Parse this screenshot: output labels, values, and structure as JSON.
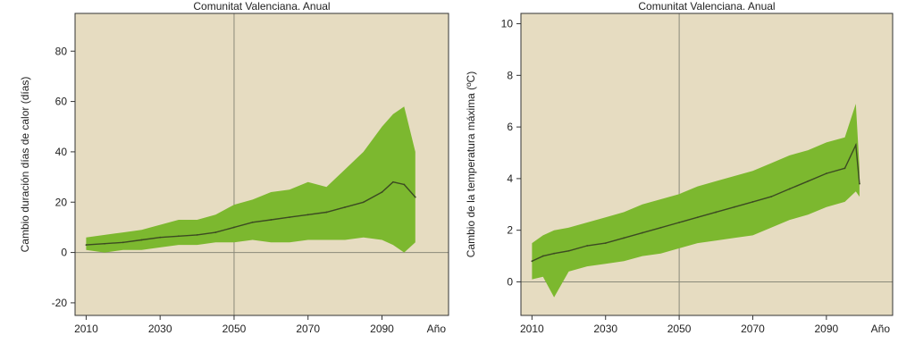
{
  "chart_data": [
    {
      "type": "area",
      "title": "Comunitat Valenciana. Anual",
      "xlabel": "Año",
      "ylabel": "Cambio duración días de calor (días)",
      "xlim": [
        2007,
        2108
      ],
      "ylim": [
        -25,
        95
      ],
      "xticks": [
        2010,
        2030,
        2050,
        2070,
        2090
      ],
      "yticks": [
        -20,
        0,
        20,
        40,
        60,
        80
      ],
      "reference_lines": {
        "x": 2050,
        "y": 0
      },
      "grid": false,
      "colors": {
        "background": "#e6dcc1",
        "band": "#7cb82f",
        "line": "#3c4a22",
        "refline": "#8a8a7a"
      },
      "series": [
        {
          "x": [
            2010,
            2015,
            2020,
            2025,
            2030,
            2035,
            2040,
            2045,
            2050,
            2055,
            2060,
            2065,
            2070,
            2075,
            2080,
            2085,
            2090,
            2093,
            2096,
            2099
          ],
          "values": [
            3,
            3.5,
            4,
            5,
            6,
            6.5,
            7,
            8,
            10,
            12,
            13,
            14,
            15,
            16,
            18,
            20,
            24,
            28,
            27,
            22
          ],
          "lower": [
            1,
            0,
            1,
            1,
            2,
            3,
            3,
            4,
            4,
            5,
            4,
            4,
            5,
            5,
            5,
            6,
            5,
            3,
            0,
            4
          ],
          "upper": [
            6,
            7,
            8,
            9,
            11,
            13,
            13,
            15,
            19,
            21,
            24,
            25,
            28,
            26,
            33,
            40,
            50,
            55,
            58,
            40
          ]
        }
      ]
    },
    {
      "type": "area",
      "title": "Comunitat Valenciana. Anual",
      "xlabel": "Año",
      "ylabel": "Cambio de la temperatura máxima (ºC)",
      "xlim": [
        2007,
        2108
      ],
      "ylim": [
        -1.3,
        10.4
      ],
      "xticks": [
        2010,
        2030,
        2050,
        2070,
        2090
      ],
      "yticks": [
        0,
        2,
        4,
        6,
        8,
        10
      ],
      "reference_lines": {
        "x": 2050,
        "y": 0
      },
      "grid": false,
      "colors": {
        "background": "#e6dcc1",
        "band": "#7cb82f",
        "line": "#3c4a22",
        "refline": "#8a8a7a"
      },
      "series": [
        {
          "x": [
            2010,
            2013,
            2016,
            2020,
            2025,
            2030,
            2035,
            2040,
            2045,
            2050,
            2055,
            2060,
            2065,
            2070,
            2075,
            2080,
            2085,
            2090,
            2095,
            2098,
            2099
          ],
          "values": [
            0.8,
            1.0,
            1.1,
            1.2,
            1.4,
            1.5,
            1.7,
            1.9,
            2.1,
            2.3,
            2.5,
            2.7,
            2.9,
            3.1,
            3.3,
            3.6,
            3.9,
            4.2,
            4.4,
            5.3,
            3.8
          ],
          "lower": [
            0.1,
            0.2,
            -0.6,
            0.4,
            0.6,
            0.7,
            0.8,
            1.0,
            1.1,
            1.3,
            1.5,
            1.6,
            1.7,
            1.8,
            2.1,
            2.4,
            2.6,
            2.9,
            3.1,
            3.5,
            3.3
          ],
          "upper": [
            1.5,
            1.8,
            2.0,
            2.1,
            2.3,
            2.5,
            2.7,
            3.0,
            3.2,
            3.4,
            3.7,
            3.9,
            4.1,
            4.3,
            4.6,
            4.9,
            5.1,
            5.4,
            5.6,
            6.9,
            4.4
          ]
        }
      ]
    }
  ]
}
